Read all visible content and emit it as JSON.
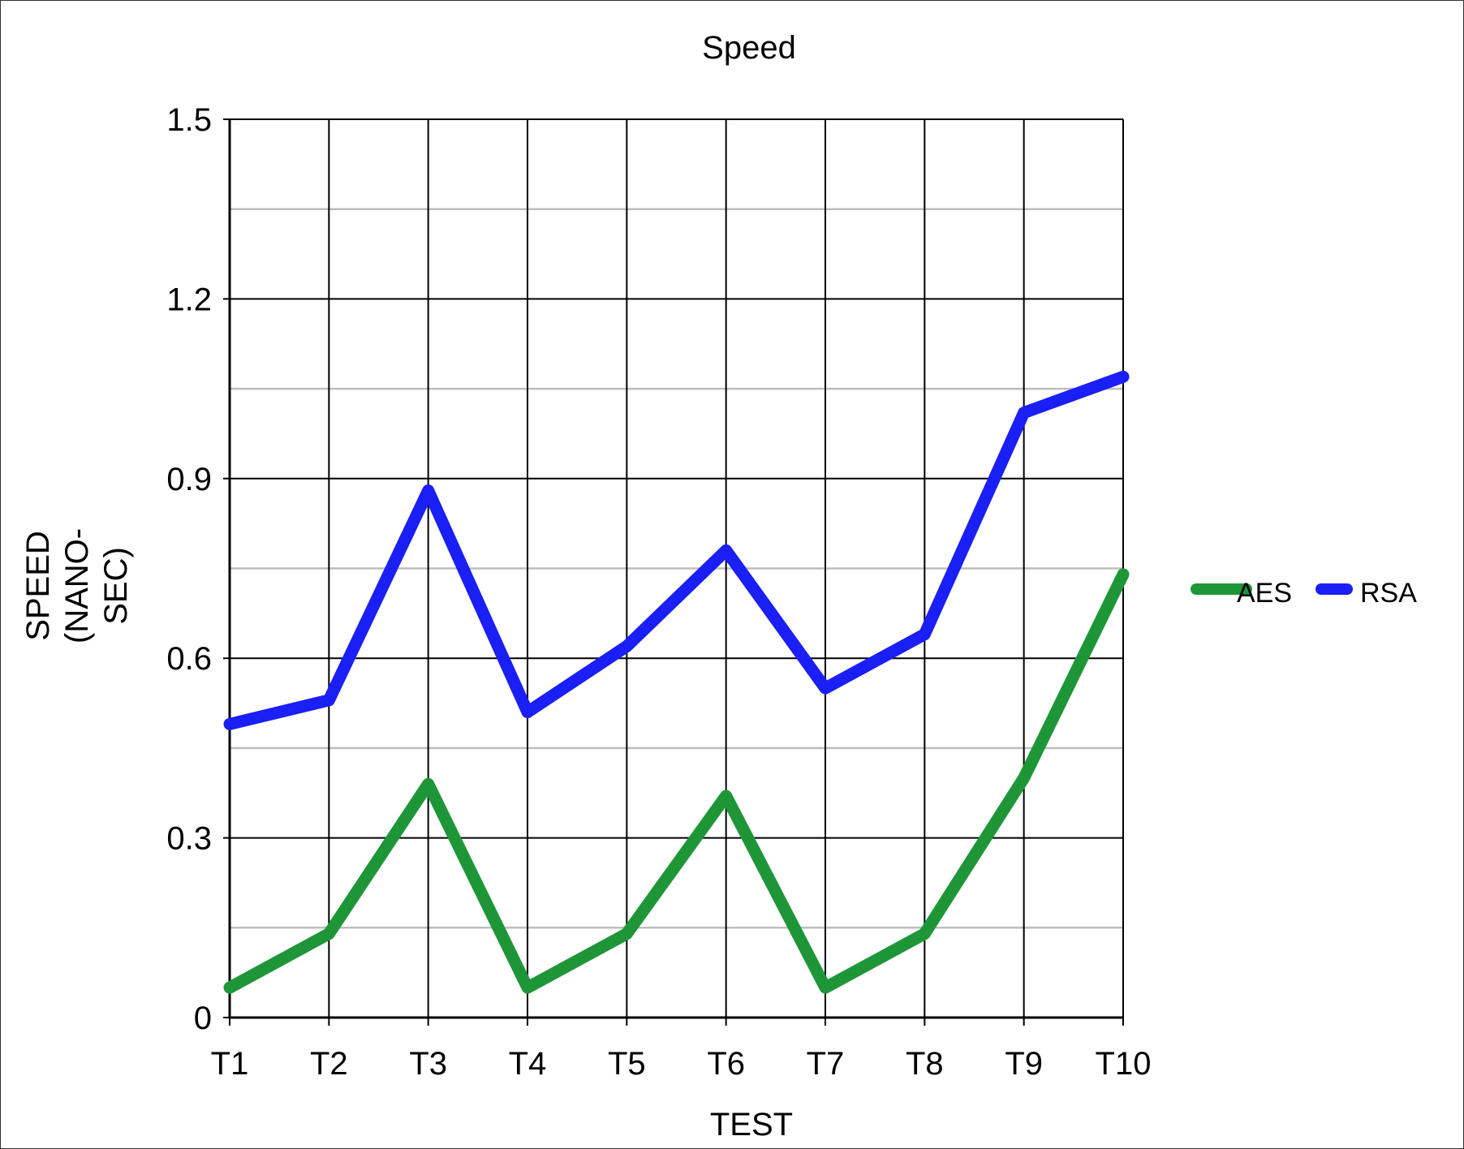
{
  "chart_data": {
    "type": "line",
    "title": "Speed",
    "xlabel": "TEST",
    "ylabel_lines": [
      "SPEED",
      "(NANO-",
      "SEC)"
    ],
    "categories": [
      "T1",
      "T2",
      "T3",
      "T4",
      "T5",
      "T6",
      "T7",
      "T8",
      "T9",
      "T10"
    ],
    "ylim": [
      0,
      1.5
    ],
    "yticks": [
      "0",
      "0.3",
      "0.6",
      "0.9",
      "1.2",
      "1.5"
    ],
    "ytick_values": [
      0,
      0.3,
      0.6,
      0.9,
      1.2,
      1.5
    ],
    "minor_gridlines": true,
    "legend_position": "right",
    "series": [
      {
        "name": "AES",
        "color": "#1e9638",
        "values": [
          0.05,
          0.14,
          0.39,
          0.05,
          0.14,
          0.37,
          0.05,
          0.14,
          0.4,
          0.74
        ]
      },
      {
        "name": "RSA",
        "color": "#1a1ff5",
        "values": [
          0.49,
          0.53,
          0.88,
          0.51,
          0.62,
          0.78,
          0.55,
          0.64,
          1.01,
          1.07
        ]
      }
    ]
  }
}
